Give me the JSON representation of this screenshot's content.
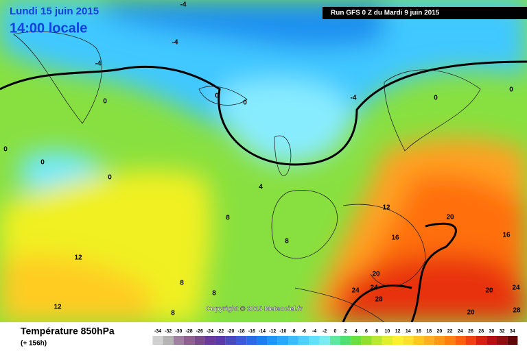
{
  "header": {
    "date": "Lundi 15 juin 2015",
    "time": "14:00 locale",
    "run": "Run GFS 0 Z du Mardi 9 juin 2015",
    "copyright": "Copyright © 2015 Meteociel.fr"
  },
  "legend": {
    "title": "Température 850hPa",
    "subtitle": "(+ 156h)",
    "ticks": [
      -34,
      -32,
      -30,
      -28,
      -26,
      -24,
      -22,
      -20,
      -18,
      -16,
      -14,
      -12,
      -10,
      -8,
      -6,
      -4,
      -2,
      0,
      2,
      4,
      6,
      8,
      10,
      12,
      14,
      16,
      18,
      20,
      22,
      24,
      26,
      28,
      30,
      32,
      34
    ],
    "colors": [
      "#d0d0d0",
      "#b4b4b4",
      "#a080a0",
      "#906090",
      "#7a4a8a",
      "#6a3a9a",
      "#5a3aaa",
      "#4a4ac0",
      "#3a5ad6",
      "#2a6ae6",
      "#1a80f0",
      "#1e96f8",
      "#28a8ff",
      "#3cbcff",
      "#50d0ff",
      "#64e0ff",
      "#78ecf0",
      "#60e8a0",
      "#50e070",
      "#68e040",
      "#90e030",
      "#b8e830",
      "#e0f030",
      "#fff030",
      "#ffe030",
      "#ffc820",
      "#ffb020",
      "#ff9818",
      "#ff8010",
      "#ff6010",
      "#f04010",
      "#d82010",
      "#b81010",
      "#901010",
      "#600808"
    ]
  },
  "contours": [
    -4,
    -4,
    -4,
    -4,
    0,
    0,
    0,
    0,
    0,
    0,
    0,
    0,
    4,
    8,
    8,
    8,
    8,
    8,
    12,
    12,
    12,
    16,
    16,
    20,
    20,
    20,
    20,
    24,
    24,
    24,
    28,
    28
  ]
}
